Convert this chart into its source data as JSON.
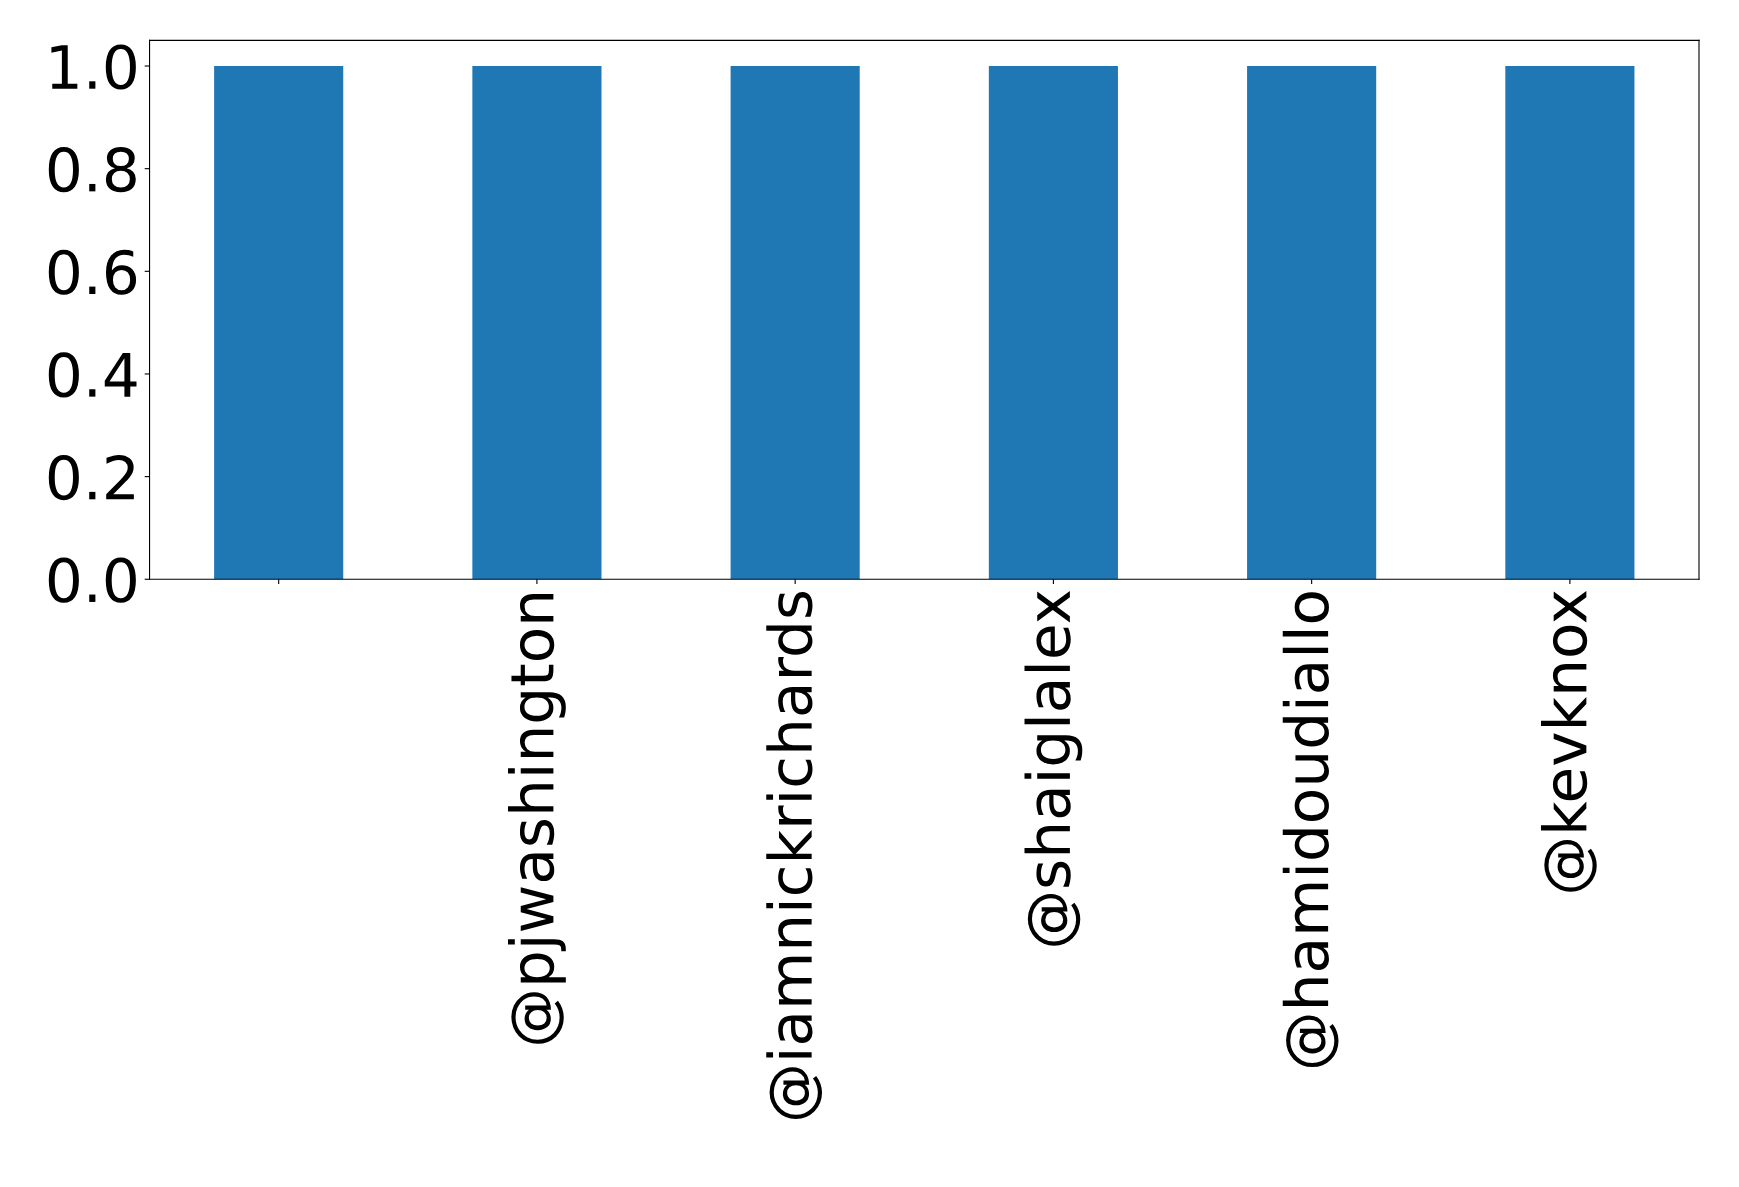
{
  "chart_data": {
    "type": "bar",
    "categories": [
      null,
      "@pjwashington",
      "@iamnickrichards",
      "@shaiglalex",
      "@hamidoudiallo",
      "@kevknox"
    ],
    "values": [
      1.0,
      1.0,
      1.0,
      1.0,
      1.0,
      1.0
    ],
    "color": "#1f77b4",
    "ylim": [
      0,
      1.05
    ],
    "yticks": [
      {
        "value": 0,
        "label": "0.0"
      },
      0.2,
      0.4,
      0.6,
      0.8,
      {
        "value": 1,
        "label": "1.0"
      }
    ],
    "grid": false,
    "legend": false
  }
}
